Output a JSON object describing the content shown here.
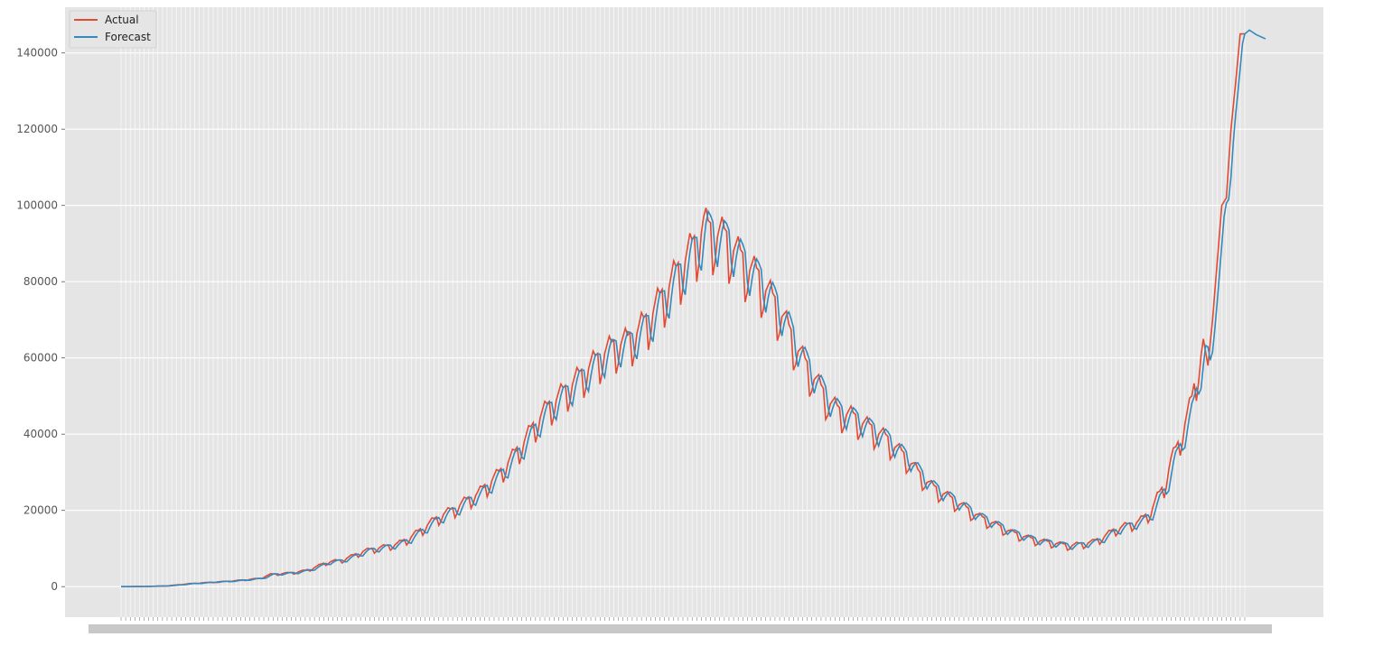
{
  "chart_data": {
    "type": "line",
    "title": "",
    "xlabel": "",
    "ylabel": "",
    "ylim": [
      -8000,
      152000
    ],
    "yticks": [
      0,
      20000,
      40000,
      60000,
      80000,
      100000,
      120000,
      140000
    ],
    "ytick_labels": [
      "0",
      "20000",
      "40000",
      "60000",
      "80000",
      "100000",
      "120000",
      "140000"
    ],
    "x_count": 400,
    "x_tick_labels_legible": false,
    "grid": true,
    "legend": {
      "placement": "top-left",
      "entries": [
        "Actual",
        "Forecast"
      ]
    },
    "series": [
      {
        "name": "Actual",
        "color": "#e24a33",
        "keypoints": [
          [
            0,
            0
          ],
          [
            10,
            50
          ],
          [
            20,
            200
          ],
          [
            30,
            800
          ],
          [
            40,
            1200
          ],
          [
            50,
            1600
          ],
          [
            60,
            2200
          ],
          [
            65,
            3300
          ],
          [
            70,
            3500
          ],
          [
            75,
            3800
          ],
          [
            80,
            4300
          ],
          [
            85,
            5400
          ],
          [
            90,
            6700
          ],
          [
            95,
            7000
          ],
          [
            100,
            8100
          ],
          [
            105,
            9500
          ],
          [
            110,
            10200
          ],
          [
            115,
            10800
          ],
          [
            120,
            11500
          ],
          [
            125,
            13000
          ],
          [
            130,
            15200
          ],
          [
            135,
            17500
          ],
          [
            140,
            19500
          ],
          [
            145,
            21000
          ],
          [
            150,
            23200
          ],
          [
            155,
            25000
          ],
          [
            160,
            28000
          ],
          [
            165,
            31000
          ],
          [
            170,
            35000
          ],
          [
            175,
            39000
          ],
          [
            180,
            44000
          ],
          [
            185,
            48000
          ],
          [
            190,
            51000
          ],
          [
            195,
            54000
          ],
          [
            200,
            57000
          ],
          [
            205,
            60000
          ],
          [
            210,
            63000
          ],
          [
            215,
            65000
          ],
          [
            220,
            66000
          ],
          [
            225,
            69000
          ],
          [
            230,
            73000
          ],
          [
            235,
            78000
          ],
          [
            240,
            83000
          ],
          [
            245,
            88000
          ],
          [
            250,
            93000
          ],
          [
            253,
            97000
          ],
          [
            257,
            95000
          ],
          [
            262,
            94000
          ],
          [
            267,
            90000
          ],
          [
            272,
            86000
          ],
          [
            277,
            83000
          ],
          [
            282,
            78000
          ],
          [
            287,
            73000
          ],
          [
            292,
            66000
          ],
          [
            297,
            60000
          ],
          [
            302,
            55000
          ],
          [
            307,
            50000
          ],
          [
            312,
            47000
          ],
          [
            317,
            46000
          ],
          [
            322,
            44000
          ],
          [
            327,
            42000
          ],
          [
            332,
            40000
          ],
          [
            337,
            37000
          ],
          [
            342,
            34000
          ],
          [
            347,
            30000
          ],
          [
            352,
            27000
          ],
          [
            357,
            25000
          ],
          [
            362,
            23000
          ],
          [
            367,
            21000
          ],
          [
            372,
            19000
          ],
          [
            377,
            17500
          ],
          [
            382,
            16000
          ],
          [
            387,
            14500
          ],
          [
            392,
            13500
          ],
          [
            397,
            12500
          ],
          [
            402,
            12000
          ],
          [
            407,
            11500
          ],
          [
            412,
            11000
          ],
          [
            417,
            11500
          ],
          [
            422,
            12000
          ],
          [
            427,
            13500
          ],
          [
            432,
            15500
          ],
          [
            437,
            16500
          ],
          [
            442,
            17500
          ],
          [
            447,
            20000
          ],
          [
            450,
            24000
          ],
          [
            453,
            27000
          ],
          [
            456,
            34000
          ],
          [
            459,
            38000
          ],
          [
            462,
            44000
          ],
          [
            465,
            50000
          ],
          [
            468,
            60000
          ],
          [
            470,
            65000
          ],
          [
            472,
            58000
          ],
          [
            474,
            70000
          ],
          [
            476,
            85000
          ],
          [
            478,
            100000
          ],
          [
            480,
            102000
          ],
          [
            482,
            120000
          ],
          [
            484,
            132000
          ],
          [
            486,
            145000
          ],
          [
            488,
            145000
          ]
        ],
        "notes": "weekly oscillation dips of roughly 10–20% of value, strongest mid-range"
      },
      {
        "name": "Forecast",
        "color": "#348abd",
        "lag": 1.5,
        "extension": [
          [
            488,
            145000
          ],
          [
            490,
            146000
          ],
          [
            493,
            144800
          ],
          [
            497,
            143700
          ]
        ]
      }
    ]
  }
}
